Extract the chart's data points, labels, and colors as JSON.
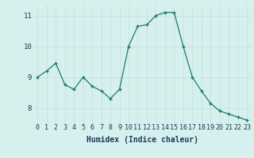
{
  "x": [
    0,
    1,
    2,
    3,
    4,
    5,
    6,
    7,
    8,
    9,
    10,
    11,
    12,
    13,
    14,
    15,
    16,
    17,
    18,
    19,
    20,
    21,
    22,
    23
  ],
  "y": [
    9.0,
    9.2,
    9.45,
    8.75,
    8.6,
    9.0,
    8.7,
    8.55,
    8.3,
    8.6,
    10.0,
    10.65,
    10.7,
    11.0,
    11.1,
    11.1,
    10.0,
    9.0,
    8.55,
    8.15,
    7.9,
    7.8,
    7.7,
    7.6
  ],
  "xlabel": "Humidex (Indice chaleur)",
  "xlim": [
    -0.5,
    23.5
  ],
  "ylim": [
    7.5,
    11.35
  ],
  "yticks": [
    8,
    9,
    10,
    11
  ],
  "xticks": [
    0,
    1,
    2,
    3,
    4,
    5,
    6,
    7,
    8,
    9,
    10,
    11,
    12,
    13,
    14,
    15,
    16,
    17,
    18,
    19,
    20,
    21,
    22,
    23
  ],
  "line_color": "#1e7a6e",
  "marker_color": "#1e7a6e",
  "bg_color": "#d6f0ee",
  "grid_color_major": "#c0dedd",
  "grid_color_minor": "#c0dedd",
  "label_color": "#1a3a5c",
  "tick_label_fontsize": 6.0,
  "xlabel_fontsize": 7.0
}
